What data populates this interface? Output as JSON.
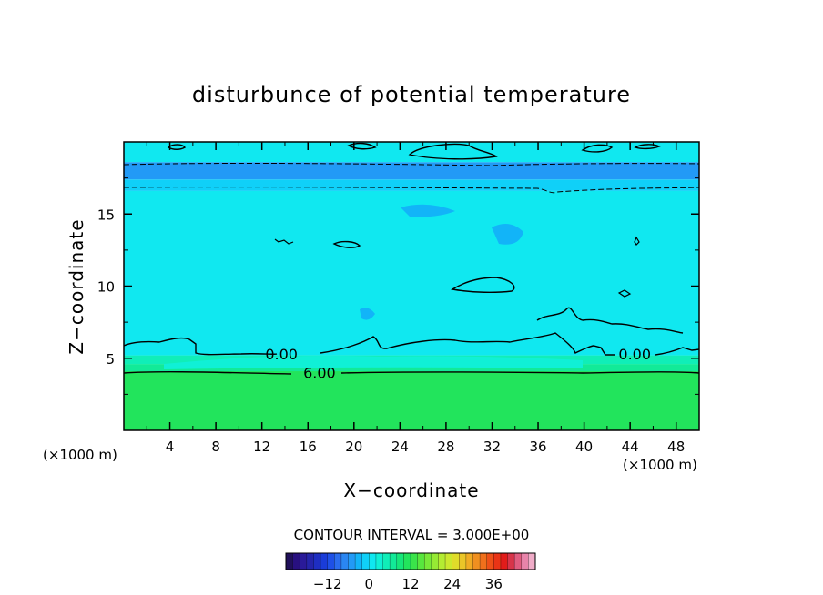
{
  "chart_data": {
    "type": "heatmap",
    "title": "disturbunce of potential temperature",
    "xlabel": "X−coordinate",
    "ylabel": "Z−coordinate",
    "x_unit": "(×1000 m)",
    "y_unit": "(×1000 m)",
    "xlim": [
      0,
      50
    ],
    "ylim": [
      0,
      20
    ],
    "x_ticks": [
      4,
      8,
      12,
      16,
      20,
      24,
      28,
      32,
      36,
      40,
      44,
      48
    ],
    "y_ticks": [
      5,
      10,
      15
    ],
    "contour_interval_text": "CONTOUR INTERVAL = 3.000E+00",
    "contour_labels": [
      {
        "text": "0.00",
        "x": 13.7,
        "z": 5.3
      },
      {
        "text": "0.00",
        "x": 44.4,
        "z": 5.3
      },
      {
        "text": "6.00",
        "x": 17.0,
        "z": 4.0
      }
    ],
    "field_layers": [
      {
        "z_from": 0,
        "z_to": 4.1,
        "value": 10.5
      },
      {
        "z_from": 4.1,
        "z_to": 4.6,
        "value": 7.5
      },
      {
        "z_from": 4.6,
        "z_to": 5.2,
        "value": 4.5
      },
      {
        "z_from": 5.2,
        "z_to": 16.6,
        "value": 1.5
      },
      {
        "z_from": 16.6,
        "z_to": 17.4,
        "value": -1.5
      },
      {
        "z_from": 17.4,
        "z_to": 18.6,
        "value": -4.5
      },
      {
        "z_from": 18.6,
        "z_to": 20,
        "value": 1.5
      }
    ],
    "colorbar": {
      "ticks": [
        -12,
        0,
        12,
        24,
        36
      ],
      "range": [
        -24,
        48
      ],
      "colors": [
        "#20105a",
        "#281080",
        "#2a1a99",
        "#2424aa",
        "#1e2ec2",
        "#1a3cd8",
        "#1e50e6",
        "#2a6cee",
        "#2a86f2",
        "#229af6",
        "#12b4f8",
        "#10d0f8",
        "#10e8f0",
        "#10f0d6",
        "#10eeb8",
        "#12ea98",
        "#16e67a",
        "#22e45c",
        "#3ae44a",
        "#58e63e",
        "#78e838",
        "#96ea34",
        "#b4ec32",
        "#cce82e",
        "#e0dc2a",
        "#eac628",
        "#f0ac24",
        "#f09020",
        "#f0701c",
        "#ee5018",
        "#ea3416",
        "#e21c1a",
        "#d8344a",
        "#e05c80",
        "#e884aa",
        "#f0acc8"
      ]
    }
  }
}
